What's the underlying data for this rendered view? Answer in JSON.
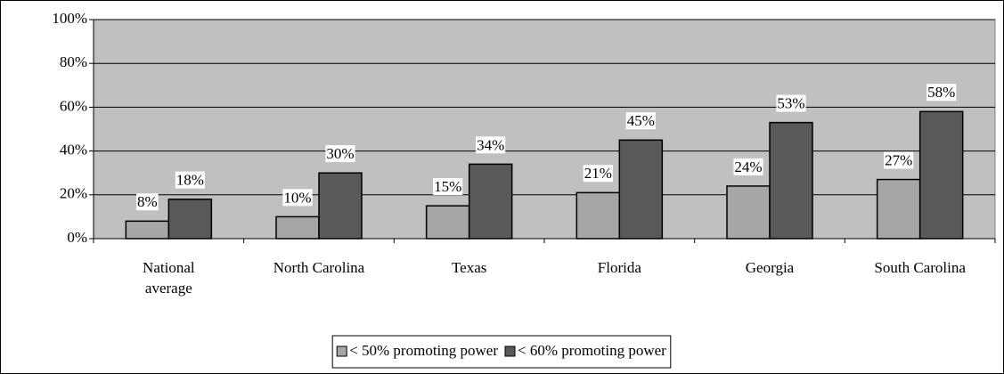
{
  "chart_data": {
    "type": "bar",
    "categories": [
      "National average",
      "North Carolina",
      "Texas",
      "Florida",
      "Georgia",
      "South Carolina"
    ],
    "series": [
      {
        "name": "< 50% promoting power",
        "color": "#a6a6a6",
        "values": [
          8,
          10,
          15,
          21,
          24,
          27
        ],
        "value_labels": [
          "8%",
          "10%",
          "15%",
          "21%",
          "24%",
          "27%"
        ]
      },
      {
        "name": "< 60% promoting power",
        "color": "#595959",
        "values": [
          18,
          30,
          34,
          45,
          53,
          58
        ],
        "value_labels": [
          "18%",
          "30%",
          "34%",
          "45%",
          "53%",
          "58%"
        ]
      }
    ],
    "ylim": [
      0,
      100
    ],
    "yticks": [
      {
        "value": 0,
        "label": "0%"
      },
      {
        "value": 20,
        "label": "20%"
      },
      {
        "value": 40,
        "label": "40%"
      },
      {
        "value": 60,
        "label": "60%"
      },
      {
        "value": 80,
        "label": "80%"
      },
      {
        "value": 100,
        "label": "100%"
      }
    ],
    "grid": true,
    "plot_background": "#c0c0c0",
    "legend": "bottom"
  }
}
